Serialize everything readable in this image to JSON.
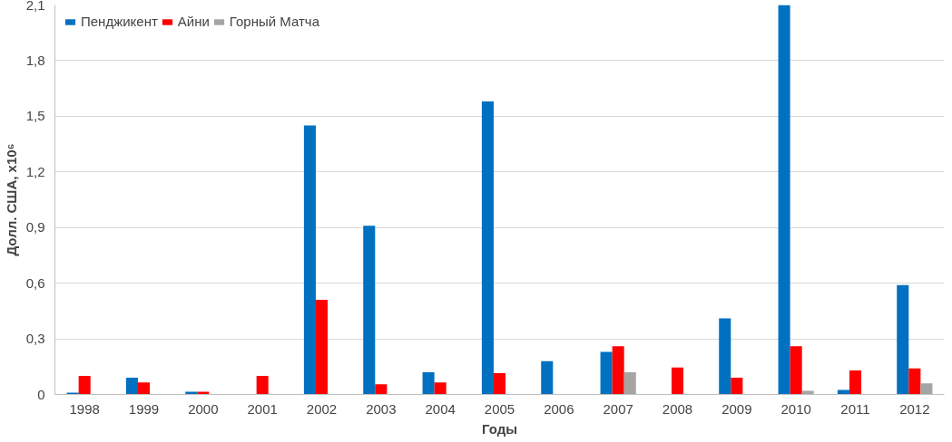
{
  "chart_data": {
    "type": "bar",
    "xlabel": "Годы",
    "ylabel": "Долл. США, x10⁶",
    "categories": [
      "1998",
      "1999",
      "2000",
      "2001",
      "2002",
      "2003",
      "2004",
      "2005",
      "2006",
      "2007",
      "2008",
      "2009",
      "2010",
      "2011",
      "2012"
    ],
    "series": [
      {
        "name": "Пенджикент",
        "color": "#0070c0",
        "values": [
          0.01,
          0.09,
          0.015,
          0,
          1.45,
          0.91,
          0.12,
          1.58,
          0.18,
          0.23,
          0,
          0.41,
          2.1,
          0.025,
          0.59
        ]
      },
      {
        "name": "Айни",
        "color": "#ff0000",
        "values": [
          0.1,
          0.065,
          0.015,
          0.1,
          0.51,
          0.055,
          0.065,
          0.115,
          0,
          0.26,
          0.145,
          0.09,
          0.26,
          0.13,
          0.14
        ]
      },
      {
        "name": "Горный Матча",
        "color": "#a5a5a5",
        "values": [
          0,
          0,
          0.003,
          null,
          null,
          0,
          0,
          0,
          0,
          0.12,
          0,
          0,
          0.02,
          0,
          0.06
        ]
      }
    ],
    "ylim": [
      0,
      2.1
    ],
    "yticks": [
      {
        "value": 0,
        "label": "0"
      },
      {
        "value": 0.3,
        "label": "0,3"
      },
      {
        "value": 0.6,
        "label": "0,6"
      },
      {
        "value": 0.9,
        "label": "0,9"
      },
      {
        "value": 1.2,
        "label": "1,2"
      },
      {
        "value": 1.5,
        "label": "1,5"
      },
      {
        "value": 1.8,
        "label": "1,8"
      },
      {
        "value": 2.1,
        "label": "2,1"
      }
    ],
    "grid": "y",
    "legend": "top left"
  }
}
